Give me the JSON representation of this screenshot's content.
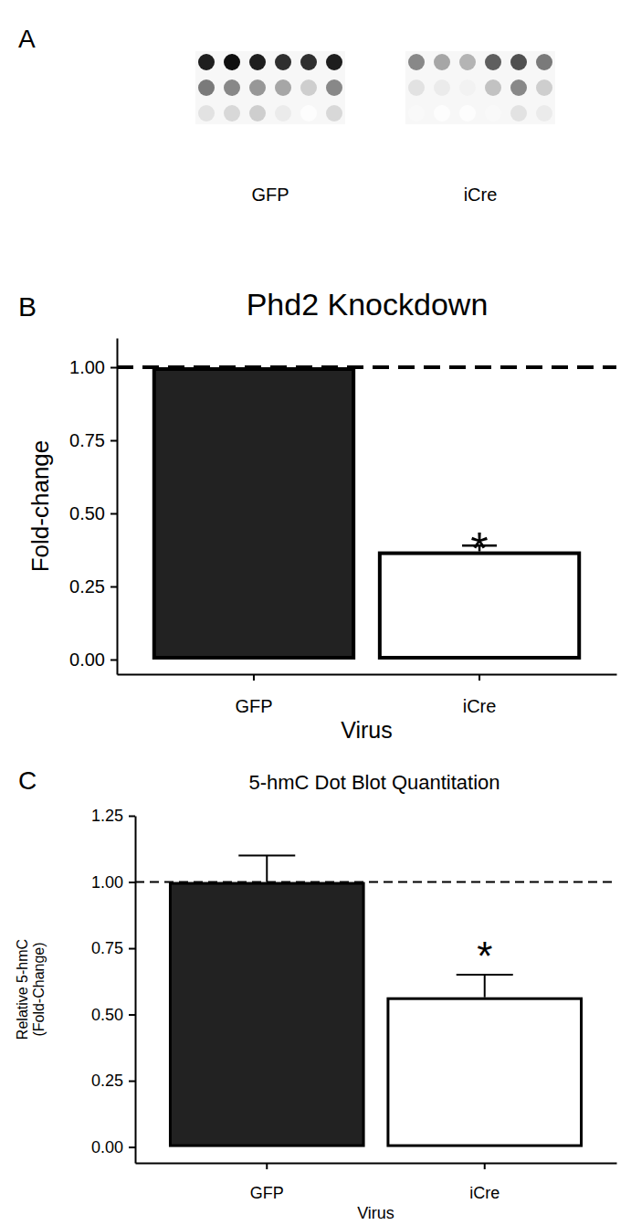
{
  "chart_data": [
    {
      "type": "dot_blot",
      "panel": "A",
      "blots": [
        {
          "name": "GFP",
          "cells": [
            [
              0.9,
              0.95,
              0.9,
              0.85,
              0.85,
              0.9
            ],
            [
              0.6,
              0.55,
              0.5,
              0.45,
              0.3,
              0.55
            ],
            [
              0.2,
              0.25,
              0.3,
              0.15,
              0.02,
              0.25
            ]
          ]
        },
        {
          "name": "iCre",
          "cells": [
            [
              0.55,
              0.45,
              0.4,
              0.7,
              0.75,
              0.6
            ],
            [
              0.2,
              0.15,
              0.1,
              0.35,
              0.55,
              0.3
            ],
            [
              0.05,
              0.02,
              0.02,
              0.05,
              0.2,
              0.15
            ]
          ]
        }
      ]
    },
    {
      "type": "bar",
      "panel": "B",
      "title": "Phd2 Knockdown",
      "x_label": "Virus",
      "y_label": "Fold-change",
      "categories": [
        "GFP",
        "iCre"
      ],
      "values": [
        1.0,
        0.37
      ],
      "errors": [
        0,
        0.02
      ],
      "colors": [
        "#222222",
        "#ffffff"
      ],
      "ylim": [
        -0.05,
        1.1
      ],
      "yticks": [
        {
          "value": 0,
          "label": "0.00"
        },
        {
          "value": 0.25,
          "label": "0.25"
        },
        {
          "value": 0.5,
          "label": "0.50"
        },
        {
          "value": 0.75,
          "label": "0.75"
        },
        {
          "value": 1,
          "label": "1.00"
        }
      ],
      "reference_line": 1,
      "annotations": [
        {
          "text": "*",
          "x": "iCre",
          "y": 0.38
        }
      ]
    },
    {
      "type": "bar",
      "panel": "C",
      "title": "5-hmC Dot Blot Quantitation",
      "x_label": "Virus",
      "y_label": [
        "Relative 5-hmC",
        "(Fold-Change)"
      ],
      "categories": [
        "GFP",
        "iCre"
      ],
      "values": [
        1.0,
        0.565
      ],
      "errors": [
        0.1,
        0.085
      ],
      "colors": [
        "#222222",
        "#ffffff"
      ],
      "ylim": [
        -0.06,
        1.25
      ],
      "yticks": [
        {
          "value": 0,
          "label": "0.00"
        },
        {
          "value": 0.25,
          "label": "0.25"
        },
        {
          "value": 0.5,
          "label": "0.50"
        },
        {
          "value": 0.75,
          "label": "0.75"
        },
        {
          "value": 1,
          "label": "1.00"
        },
        {
          "value": 1.25,
          "label": "1.25"
        }
      ],
      "reference_line": 1,
      "annotations": [
        {
          "text": "*",
          "x": "iCre",
          "y": 0.72
        }
      ]
    }
  ]
}
